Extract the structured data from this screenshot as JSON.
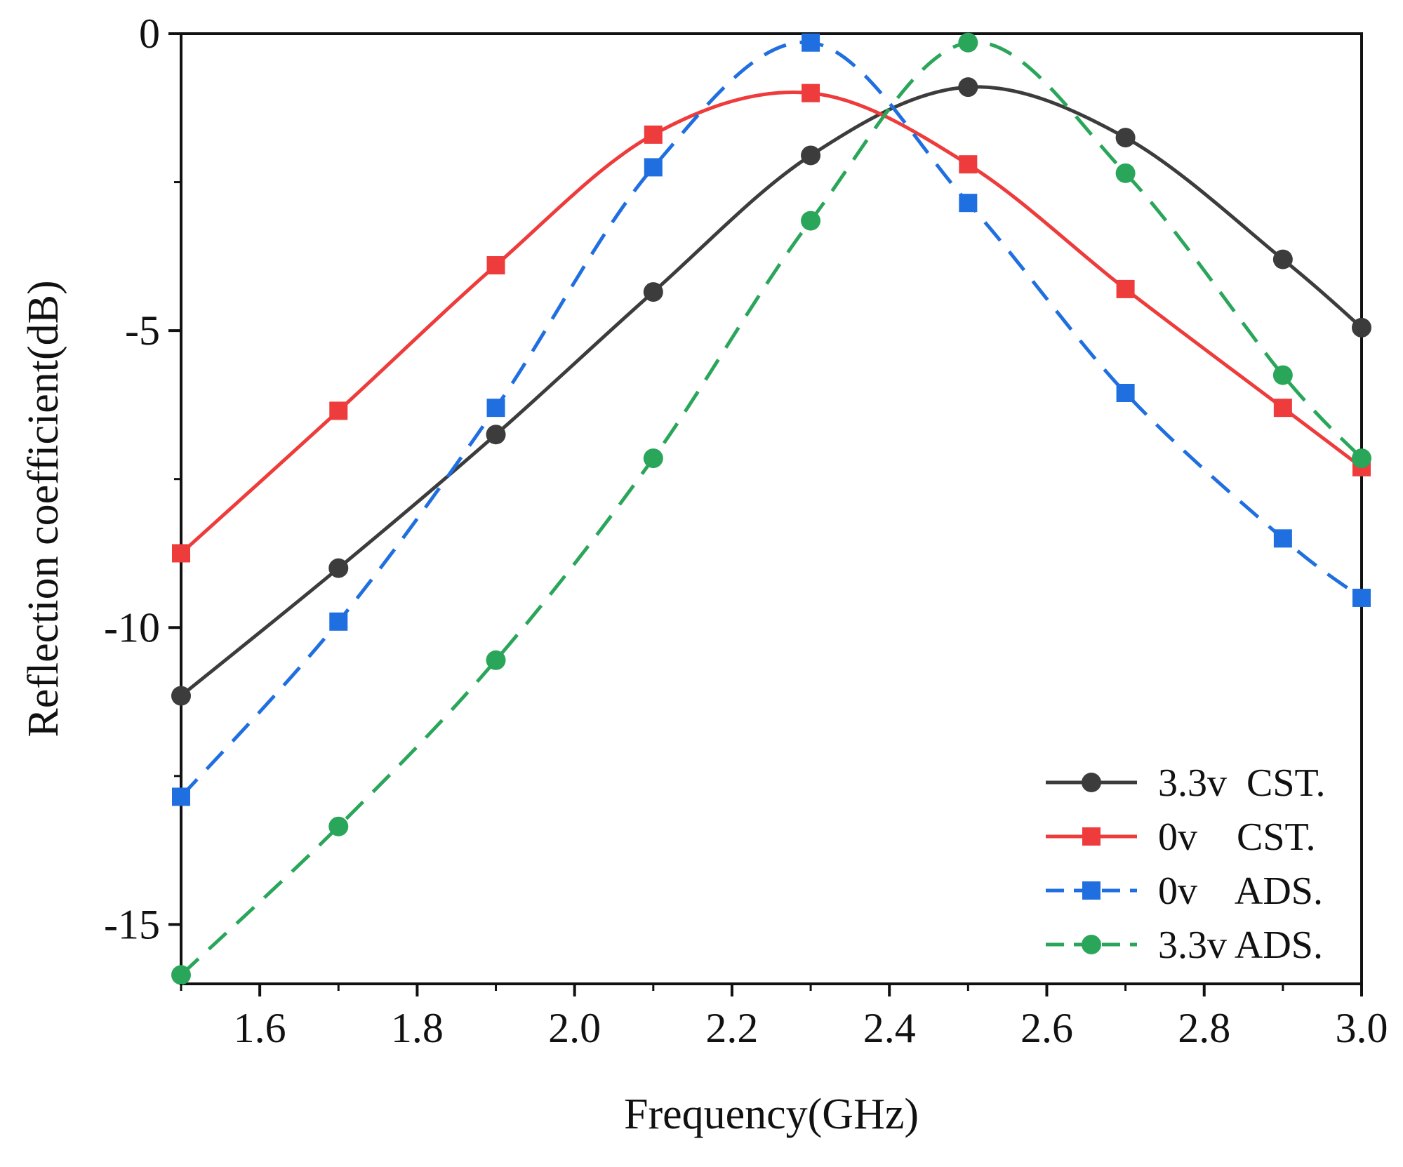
{
  "chart_data": {
    "type": "line",
    "title": "",
    "xlabel": "Frequency(GHz)",
    "ylabel": "Reflection coefficient(dB)",
    "xlim": [
      1.5,
      3.0
    ],
    "ylim": [
      -16,
      0
    ],
    "xticks": [
      "1.6",
      "1.8",
      "2.0",
      "2.2",
      "2.4",
      "2.6",
      "2.8",
      "3.0"
    ],
    "xtick_values": [
      1.6,
      1.8,
      2.0,
      2.2,
      2.4,
      2.6,
      2.8,
      3.0
    ],
    "yticks": [
      "0",
      "-5",
      "-10",
      "-15"
    ],
    "ytick_values": [
      0,
      -5,
      -10,
      -15
    ],
    "grid": false,
    "legend_position": "bottom-right",
    "series": [
      {
        "name": "3.3v  CST.",
        "color": "#3c3c3c",
        "line": "solid",
        "marker": "circle",
        "x": [
          1.5,
          1.7,
          1.9,
          2.1,
          2.3,
          2.5,
          2.7,
          2.9,
          3.0
        ],
        "y": [
          -11.15,
          -9.0,
          -6.75,
          -4.35,
          -2.05,
          -0.9,
          -1.75,
          -3.8,
          -4.95
        ]
      },
      {
        "name": "0v    CST.",
        "color": "#ee3b3b",
        "line": "solid",
        "marker": "square",
        "x": [
          1.5,
          1.7,
          1.9,
          2.1,
          2.3,
          2.5,
          2.7,
          2.9,
          3.0
        ],
        "y": [
          -8.75,
          -6.35,
          -3.9,
          -1.7,
          -1.0,
          -2.2,
          -4.3,
          -6.3,
          -7.3
        ]
      },
      {
        "name": "0v    ADS.",
        "color": "#1f6fe0",
        "line": "dashed",
        "marker": "square",
        "x": [
          1.5,
          1.7,
          1.9,
          2.1,
          2.3,
          2.5,
          2.7,
          2.9,
          3.0
        ],
        "y": [
          -12.85,
          -9.9,
          -6.3,
          -2.25,
          -0.15,
          -2.85,
          -6.05,
          -8.5,
          -9.5
        ]
      },
      {
        "name": "3.3v ADS.",
        "color": "#2aa65a",
        "line": "dashed",
        "marker": "circle",
        "x": [
          1.5,
          1.7,
          1.9,
          2.1,
          2.3,
          2.5,
          2.7,
          2.9,
          3.0
        ],
        "y": [
          -15.85,
          -13.35,
          -10.55,
          -7.15,
          -3.15,
          -0.15,
          -2.35,
          -5.75,
          -7.15
        ]
      }
    ]
  }
}
